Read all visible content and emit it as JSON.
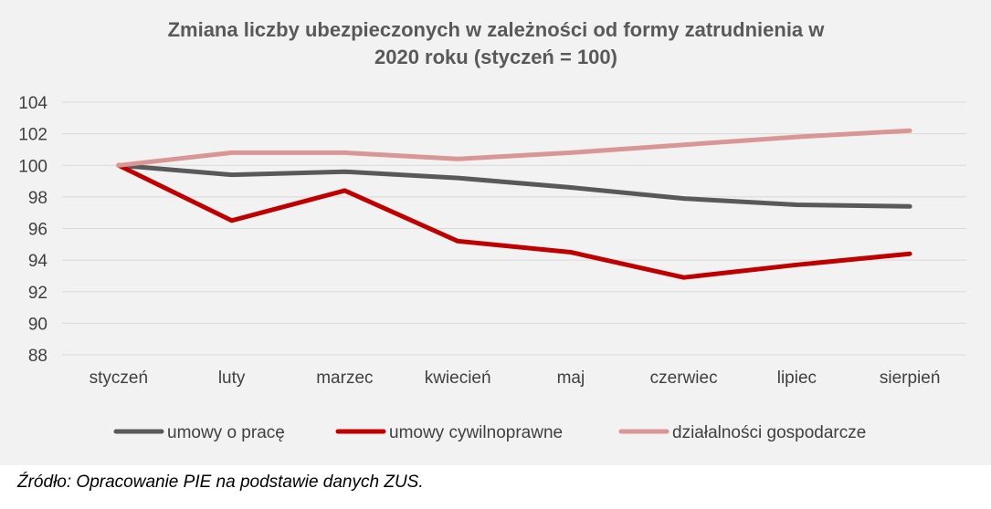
{
  "chart_data": {
    "type": "line",
    "title_lines": [
      "Zmiana liczby ubezpieczonych w zależności od formy zatrudnienia w",
      "2020 roku (styczeń = 100)"
    ],
    "categories": [
      "styczeń",
      "luty",
      "marzec",
      "kwiecień",
      "maj",
      "czerwiec",
      "lipiec",
      "sierpień"
    ],
    "ylim": [
      88,
      104
    ],
    "yticks": [
      "88",
      "90",
      "92",
      "94",
      "96",
      "98",
      "100",
      "102",
      "104"
    ],
    "grid": true,
    "legend_position": "bottom",
    "series": [
      {
        "name": "umowy o pracę",
        "color": "#595959",
        "values": [
          100,
          99.4,
          99.6,
          99.2,
          98.6,
          97.9,
          97.5,
          97.4
        ]
      },
      {
        "name": "umowy cywilnoprawne",
        "color": "#c00000",
        "values": [
          100,
          96.5,
          98.4,
          95.2,
          94.5,
          92.9,
          93.7,
          94.4
        ]
      },
      {
        "name": "działalności gospodarcze",
        "color": "#d99694",
        "values": [
          100,
          100.8,
          100.8,
          100.4,
          100.8,
          101.3,
          101.8,
          102.2
        ]
      }
    ]
  },
  "source_text": "Źródło: Opracowanie PIE na podstawie danych ZUS."
}
